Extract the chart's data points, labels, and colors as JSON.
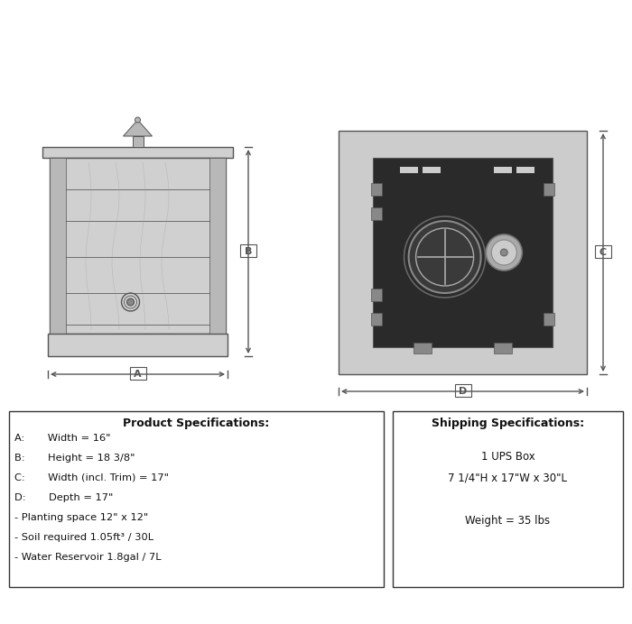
{
  "bg_color": "#ffffff",
  "drawing_color": "#555555",
  "wood_color": "#d0d0d0",
  "wood_dark": "#b8b8b8",
  "black_panel": "#2a2a2a",
  "title1": "Product Specifications:",
  "title2": "Shipping Specifications:",
  "spec_lines": [
    "A:       Width = 16\"",
    "B:       Height = 18 3/8\"",
    "C:       Width (incl. Trim) = 17\"",
    "D:       Depth = 17\"",
    "- Planting space 12\" x 12\"",
    "- Soil required 1.05ft³ / 30L",
    "- Water Reservoir 1.8gal / 7L"
  ],
  "ship_lines": [
    "1 UPS Box",
    "7 1/4\"H x 17\"W x 30\"L",
    "",
    "Weight = 35 lbs"
  ]
}
